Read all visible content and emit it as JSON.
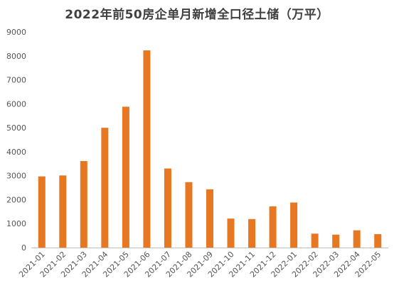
{
  "chart_data": {
    "type": "bar",
    "title": "2022年前50房企单月新增全口径土储（万平）",
    "categories": [
      "2021-01",
      "2021-02",
      "2021-03",
      "2021-04",
      "2021-05",
      "2021-06",
      "2021-07",
      "2021-08",
      "2021-09",
      "2021-10",
      "2021-11",
      "2021-12",
      "2022-01",
      "2022-02",
      "2022-03",
      "2022-04",
      "2022-05"
    ],
    "values": [
      2970,
      3010,
      3610,
      5000,
      5880,
      8230,
      3300,
      2730,
      2430,
      1210,
      1190,
      1720,
      1880,
      580,
      540,
      720,
      560
    ],
    "ylim": [
      0,
      9000
    ],
    "yticks": [
      0,
      1000,
      2000,
      3000,
      4000,
      5000,
      6000,
      7000,
      8000,
      9000
    ],
    "grid": false,
    "legend": "none",
    "bar_color": "#E87722"
  }
}
